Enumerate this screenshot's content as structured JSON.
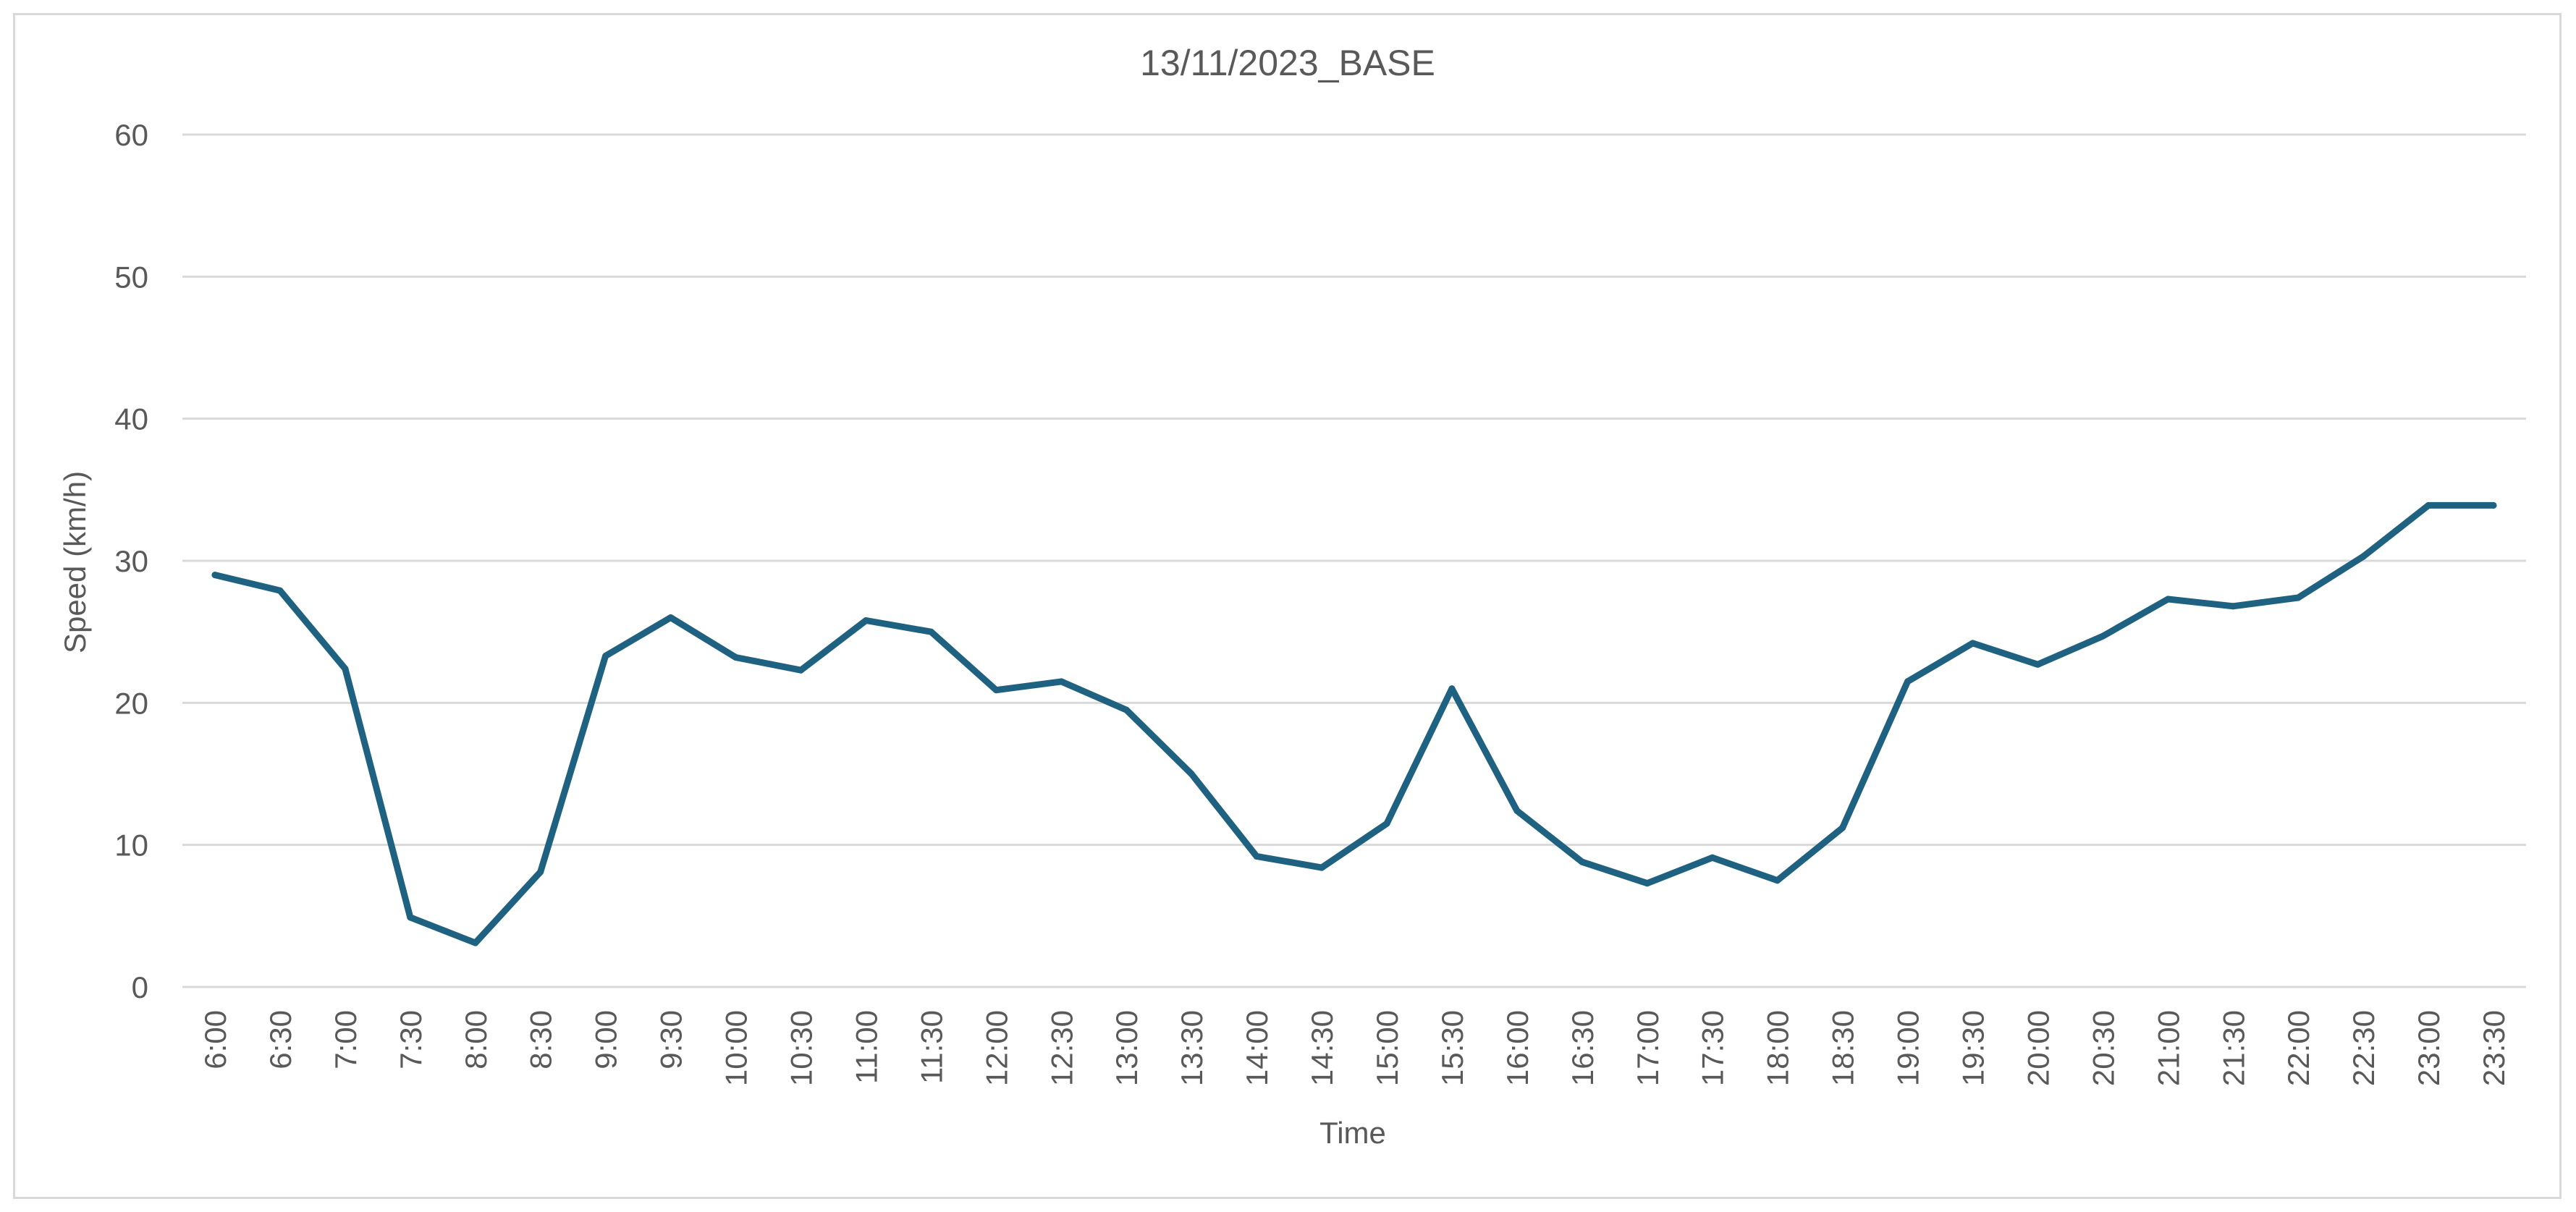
{
  "chart_data": {
    "type": "line",
    "title": "13/11/2023_BASE",
    "xlabel": "Time",
    "ylabel": "Speed (km/h)",
    "ylim": [
      0,
      60
    ],
    "yticks": [
      0,
      10,
      20,
      30,
      40,
      50,
      60
    ],
    "grid": true,
    "legend": "none",
    "categories": [
      "6:00",
      "6:30",
      "7:00",
      "7:30",
      "8:00",
      "8:30",
      "9:00",
      "9:30",
      "10:00",
      "10:30",
      "11:00",
      "11:30",
      "12:00",
      "12:30",
      "13:00",
      "13:30",
      "14:00",
      "14:30",
      "15:00",
      "15:30",
      "16:00",
      "16:30",
      "17:00",
      "17:30",
      "18:00",
      "18:30",
      "19:00",
      "19:30",
      "20:00",
      "20:30",
      "21:00",
      "21:30",
      "22:00",
      "22:30",
      "23:00",
      "23:30"
    ],
    "series": [
      {
        "color": "#1f6181",
        "values": [
          29.0,
          27.9,
          22.4,
          4.9,
          3.1,
          8.1,
          23.3,
          26.0,
          23.2,
          22.3,
          25.8,
          25.0,
          20.9,
          21.5,
          19.5,
          15.0,
          9.2,
          8.4,
          11.5,
          21.0,
          12.4,
          8.8,
          7.3,
          9.1,
          7.5,
          11.2,
          21.5,
          24.2,
          22.7,
          24.7,
          27.3,
          26.8,
          27.4,
          30.3,
          33.9,
          33.9
        ]
      }
    ]
  }
}
